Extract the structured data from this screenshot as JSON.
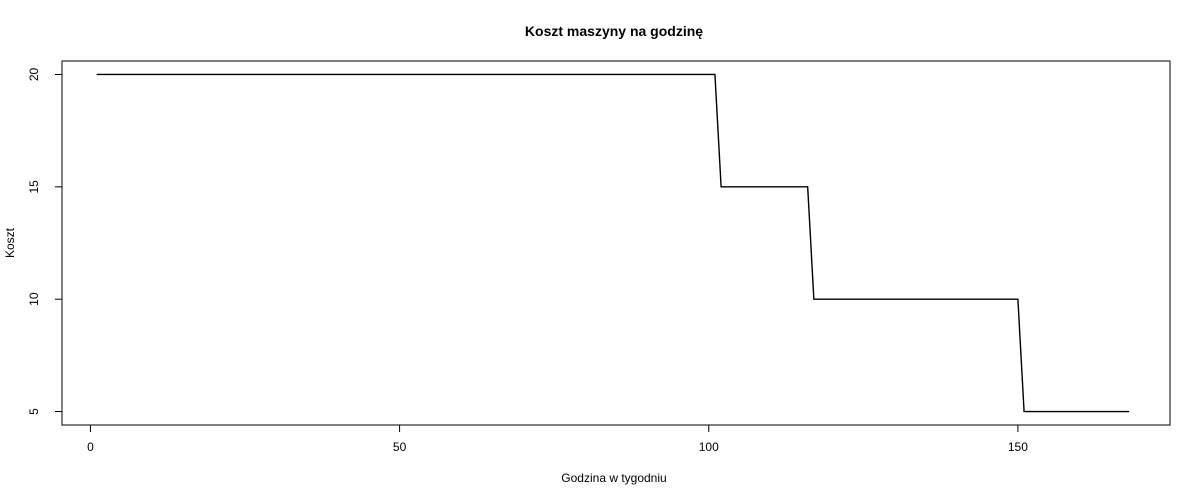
{
  "chart_data": {
    "type": "line",
    "title": "Koszt maszyny na godzinę",
    "xlabel": "Godzina w tygodniu",
    "ylabel": "Koszt",
    "xlim": [
      -4.6,
      174.6
    ],
    "ylim": [
      4.4,
      20.6
    ],
    "xticks": [
      0,
      50,
      100,
      150
    ],
    "yticks": [
      5,
      10,
      15,
      20
    ],
    "grid": false,
    "series": [
      {
        "x": [
          1,
          101,
          102,
          116,
          117,
          150,
          151,
          168
        ],
        "y": [
          20,
          20,
          15,
          15,
          10,
          10,
          5,
          5
        ]
      }
    ]
  }
}
